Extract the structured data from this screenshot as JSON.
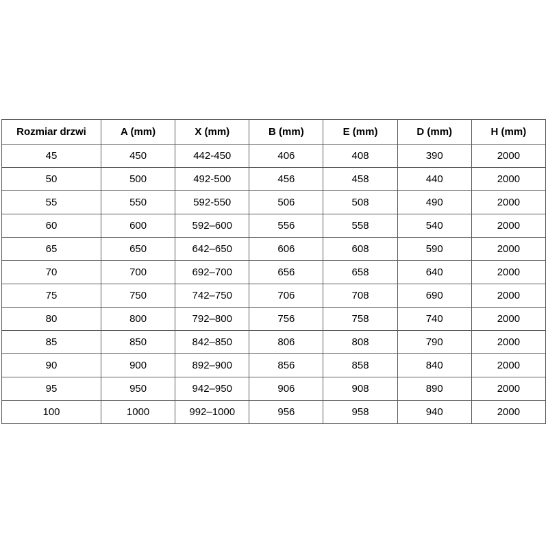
{
  "table": {
    "name": "door-size-specifications",
    "headers": [
      "Rozmiar drzwi",
      "A (mm)",
      "X (mm)",
      "B (mm)",
      "E (mm)",
      "D (mm)",
      "H (mm)"
    ],
    "rows": [
      [
        "45",
        "450",
        "442-450",
        "406",
        "408",
        "390",
        "2000"
      ],
      [
        "50",
        "500",
        "492-500",
        "456",
        "458",
        "440",
        "2000"
      ],
      [
        "55",
        "550",
        "592-550",
        "506",
        "508",
        "490",
        "2000"
      ],
      [
        "60",
        "600",
        "592–600",
        "556",
        "558",
        "540",
        "2000"
      ],
      [
        "65",
        "650",
        "642–650",
        "606",
        "608",
        "590",
        "2000"
      ],
      [
        "70",
        "700",
        "692–700",
        "656",
        "658",
        "640",
        "2000"
      ],
      [
        "75",
        "750",
        "742–750",
        "706",
        "708",
        "690",
        "2000"
      ],
      [
        "80",
        "800",
        "792–800",
        "756",
        "758",
        "740",
        "2000"
      ],
      [
        "85",
        "850",
        "842–850",
        "806",
        "808",
        "790",
        "2000"
      ],
      [
        "90",
        "900",
        "892–900",
        "856",
        "858",
        "840",
        "2000"
      ],
      [
        "95",
        "950",
        "942–950",
        "906",
        "908",
        "890",
        "2000"
      ],
      [
        "100",
        "1000",
        "992–1000",
        "956",
        "958",
        "940",
        "2000"
      ]
    ],
    "colors": {
      "border": "#595959",
      "text": "#000000",
      "background": "#ffffff"
    }
  }
}
